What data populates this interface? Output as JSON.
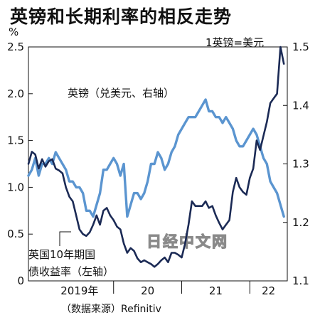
{
  "title": "英镑和长期利率的相反走势",
  "source": "（数据来源）Refinitiv",
  "watermark": "日经中文网",
  "chart_data": {
    "type": "line",
    "x_ticks": [
      "2019年",
      "20",
      "21",
      "22"
    ],
    "x_range": [
      2018.75,
      2022.55
    ],
    "left_axis": {
      "unit": "%",
      "ticks": [
        "0",
        "0.5",
        "1.0",
        "1.5",
        "2.0",
        "2.5"
      ],
      "ylim": [
        0,
        2.5
      ]
    },
    "right_axis": {
      "ticks": [
        "1.1",
        "1.2",
        "1.3",
        "1.4",
        "1.5"
      ],
      "ylim": [
        1.1,
        1.5
      ]
    },
    "annotations": {
      "right_unit": "1英镑=美元",
      "pound_label": "英镑（兑美元、右轴）",
      "yield_label_line1": "英国10年期国",
      "yield_label_line2": "债收益率（左轴）"
    },
    "series": [
      {
        "key": "pound",
        "axis": "right",
        "color": "#5b95d0",
        "x": [
          2018.75,
          2018.8,
          2018.85,
          2018.9,
          2018.95,
          2019.0,
          2019.05,
          2019.1,
          2019.15,
          2019.2,
          2019.25,
          2019.3,
          2019.35,
          2019.4,
          2019.45,
          2019.5,
          2019.55,
          2019.6,
          2019.65,
          2019.7,
          2019.75,
          2019.8,
          2019.85,
          2019.9,
          2019.95,
          2020.0,
          2020.05,
          2020.1,
          2020.15,
          2020.2,
          2020.25,
          2020.3,
          2020.35,
          2020.4,
          2020.45,
          2020.5,
          2020.55,
          2020.6,
          2020.65,
          2020.7,
          2020.75,
          2020.8,
          2020.85,
          2020.9,
          2020.95,
          2021.0,
          2021.05,
          2021.1,
          2021.15,
          2021.2,
          2021.25,
          2021.3,
          2021.35,
          2021.4,
          2021.45,
          2021.5,
          2021.55,
          2021.6,
          2021.65,
          2021.7,
          2021.75,
          2021.8,
          2021.85,
          2021.9,
          2021.95,
          2022.0,
          2022.05,
          2022.1,
          2022.15,
          2022.2,
          2022.25,
          2022.3,
          2022.35,
          2022.4,
          2022.45,
          2022.5
        ],
        "values": [
          1.28,
          1.29,
          1.31,
          1.28,
          1.3,
          1.3,
          1.31,
          1.3,
          1.32,
          1.31,
          1.3,
          1.29,
          1.27,
          1.27,
          1.26,
          1.26,
          1.25,
          1.22,
          1.22,
          1.21,
          1.23,
          1.25,
          1.29,
          1.29,
          1.3,
          1.31,
          1.3,
          1.28,
          1.3,
          1.21,
          1.23,
          1.25,
          1.25,
          1.24,
          1.25,
          1.27,
          1.3,
          1.3,
          1.32,
          1.31,
          1.29,
          1.3,
          1.32,
          1.33,
          1.35,
          1.36,
          1.37,
          1.38,
          1.38,
          1.38,
          1.39,
          1.4,
          1.41,
          1.39,
          1.39,
          1.38,
          1.38,
          1.37,
          1.38,
          1.37,
          1.36,
          1.34,
          1.33,
          1.33,
          1.34,
          1.35,
          1.36,
          1.35,
          1.33,
          1.31,
          1.3,
          1.27,
          1.26,
          1.25,
          1.23,
          1.21
        ]
      },
      {
        "key": "yield",
        "axis": "left",
        "color": "#1b2a55",
        "x": [
          2018.75,
          2018.8,
          2018.85,
          2018.9,
          2018.95,
          2019.0,
          2019.05,
          2019.1,
          2019.15,
          2019.2,
          2019.25,
          2019.3,
          2019.35,
          2019.4,
          2019.45,
          2019.5,
          2019.55,
          2019.6,
          2019.65,
          2019.7,
          2019.75,
          2019.8,
          2019.85,
          2019.9,
          2019.95,
          2020.0,
          2020.05,
          2020.1,
          2020.15,
          2020.2,
          2020.25,
          2020.3,
          2020.35,
          2020.4,
          2020.45,
          2020.5,
          2020.55,
          2020.6,
          2020.65,
          2020.7,
          2020.75,
          2020.8,
          2020.85,
          2020.9,
          2020.95,
          2021.0,
          2021.05,
          2021.1,
          2021.15,
          2021.2,
          2021.25,
          2021.3,
          2021.35,
          2021.4,
          2021.45,
          2021.5,
          2021.55,
          2021.6,
          2021.65,
          2021.7,
          2021.75,
          2021.8,
          2021.85,
          2021.9,
          2021.95,
          2022.0,
          2022.05,
          2022.1,
          2022.15,
          2022.2,
          2022.25,
          2022.3,
          2022.35,
          2022.4,
          2022.45,
          2022.5
        ],
        "values": [
          1.25,
          1.38,
          1.35,
          1.2,
          1.3,
          1.22,
          1.28,
          1.3,
          1.2,
          1.18,
          1.15,
          1.0,
          0.9,
          0.85,
          0.7,
          0.55,
          0.5,
          0.48,
          0.52,
          0.6,
          0.7,
          0.6,
          0.75,
          0.78,
          0.7,
          0.65,
          0.58,
          0.55,
          0.4,
          0.3,
          0.35,
          0.32,
          0.24,
          0.2,
          0.22,
          0.2,
          0.18,
          0.15,
          0.18,
          0.22,
          0.25,
          0.2,
          0.3,
          0.3,
          0.28,
          0.25,
          0.4,
          0.6,
          0.85,
          0.8,
          0.8,
          0.8,
          0.85,
          0.78,
          0.8,
          0.7,
          0.62,
          0.55,
          0.6,
          0.65,
          0.95,
          1.1,
          1.0,
          0.95,
          0.92,
          1.1,
          1.2,
          1.5,
          1.4,
          1.55,
          1.7,
          1.9,
          1.95,
          2.0,
          2.5,
          2.32
        ]
      }
    ]
  }
}
